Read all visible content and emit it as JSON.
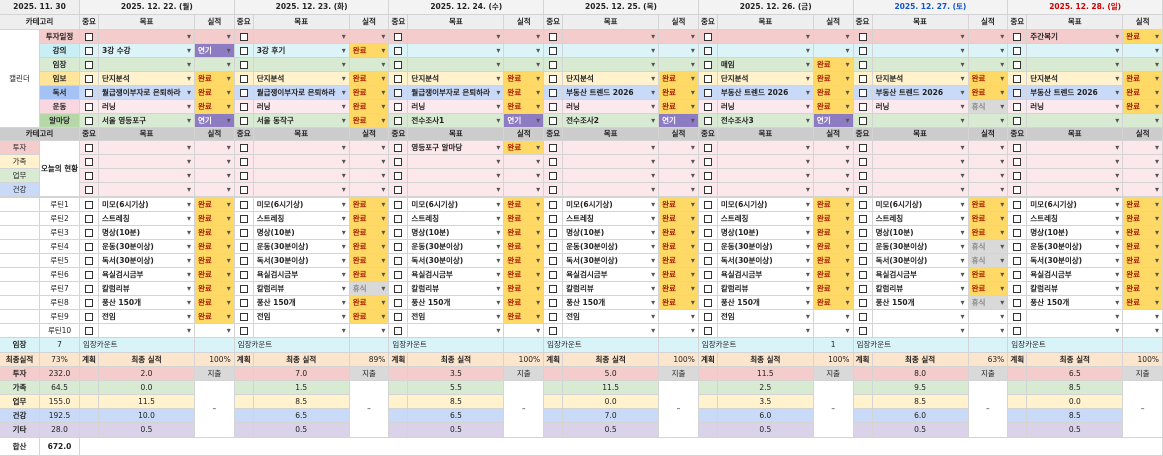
{
  "header": {
    "date": "2025. 11. 30",
    "category": "카테고리",
    "importance": "중요",
    "goal": "목표",
    "result": "실적"
  },
  "days": [
    "2025. 12. 22. (월)",
    "2025. 12. 23. (화)",
    "2025. 12. 24. (수)",
    "2025. 12. 25. (목)",
    "2025. 12. 26. (금)",
    "2025. 12. 27. (토)",
    "2025. 12. 28. (일)"
  ],
  "calendar": {
    "title": "캘린더",
    "rows": [
      {
        "label": "투자일정",
        "cells": [
          {},
          {},
          {},
          {},
          {},
          {},
          {
            "goal": "주간복기",
            "result": "완료"
          }
        ]
      },
      {
        "label": "강의",
        "cells": [
          {
            "goal": "3강 수강",
            "result": "연기"
          },
          {
            "goal": "3강 후기",
            "result": "완료"
          },
          {},
          {},
          {},
          {},
          {}
        ]
      },
      {
        "label": "임장",
        "cells": [
          {},
          {},
          {},
          {},
          {
            "goal": "매임",
            "result": "완료"
          },
          {},
          {}
        ]
      },
      {
        "label": "임보",
        "cells": [
          {
            "goal": "단지분석",
            "result": "완료"
          },
          {
            "goal": "단지분석",
            "result": "완료"
          },
          {
            "goal": "단지분석",
            "result": "완료"
          },
          {
            "goal": "단지분석",
            "result": "완료"
          },
          {
            "goal": "단지분석",
            "result": "완료"
          },
          {
            "goal": "단지분석",
            "result": "완료"
          },
          {
            "goal": "단지분석",
            "result": "완료"
          }
        ]
      },
      {
        "label": "독서",
        "cells": [
          {
            "goal": "월급쟁이부자로 은퇴하라",
            "result": "완료"
          },
          {
            "goal": "월급쟁이부자로 은퇴하라",
            "result": "완료"
          },
          {
            "goal": "월급쟁이부자로 은퇴하라",
            "result": "완료"
          },
          {
            "goal": "부동산 트렌드 2026",
            "result": "완료"
          },
          {
            "goal": "부동산 트렌드 2026",
            "result": "완료"
          },
          {
            "goal": "부동산 트렌드 2026",
            "result": "완료"
          },
          {
            "goal": "부동산 트렌드 2026",
            "result": "완료"
          }
        ]
      },
      {
        "label": "운동",
        "cells": [
          {
            "goal": "러닝",
            "result": "완료"
          },
          {
            "goal": "러닝",
            "result": "완료"
          },
          {
            "goal": "러닝",
            "result": "완료"
          },
          {
            "goal": "러닝",
            "result": "완료"
          },
          {
            "goal": "러닝",
            "result": "완료"
          },
          {
            "goal": "러닝",
            "result": "휴식"
          },
          {
            "goal": "러닝",
            "result": "완료"
          }
        ]
      },
      {
        "label": "알마당",
        "cells": [
          {
            "goal": "서울 영등포구",
            "result": "연기"
          },
          {
            "goal": "서울 동작구",
            "result": "완료"
          },
          {
            "goal": "전수조사1",
            "result": "연기"
          },
          {
            "goal": "전수조사2",
            "result": "연기"
          },
          {
            "goal": "전수조사3",
            "result": "연기"
          },
          {},
          {}
        ]
      }
    ]
  },
  "today": {
    "category": "카테고리",
    "title": "오늘의 현황",
    "rows": [
      {
        "label": "투자",
        "cells": [
          {},
          {},
          {
            "goal": "영등포구 알마당",
            "result": "완료"
          },
          {},
          {},
          {},
          {}
        ]
      },
      {
        "label": "가족",
        "cells": [
          {},
          {},
          {},
          {},
          {},
          {},
          {}
        ]
      },
      {
        "label": "업무",
        "cells": [
          {},
          {},
          {},
          {},
          {},
          {},
          {}
        ]
      },
      {
        "label": "건강",
        "cells": [
          {},
          {},
          {},
          {},
          {},
          {},
          {}
        ]
      }
    ]
  },
  "routines": [
    {
      "label": "루틴1",
      "cells": [
        {
          "goal": "미모(6시기상)",
          "result": "완료"
        },
        {
          "goal": "미모(6시기상)",
          "result": "완료"
        },
        {
          "goal": "미모(6시기상)",
          "result": "완료"
        },
        {
          "goal": "미모(6시기상)",
          "result": "완료"
        },
        {
          "goal": "미모(6시기상)",
          "result": "완료"
        },
        {
          "goal": "미모(6시기상)",
          "result": "완료"
        },
        {
          "goal": "미모(6시기상)",
          "result": "완료"
        }
      ]
    },
    {
      "label": "루틴2",
      "cells": [
        {
          "goal": "스트레칭",
          "result": "완료"
        },
        {
          "goal": "스트레칭",
          "result": "완료"
        },
        {
          "goal": "스트레칭",
          "result": "완료"
        },
        {
          "goal": "스트레칭",
          "result": "완료"
        },
        {
          "goal": "스트레칭",
          "result": "완료"
        },
        {
          "goal": "스트레칭",
          "result": "완료"
        },
        {
          "goal": "스트레칭",
          "result": "완료"
        }
      ]
    },
    {
      "label": "루틴3",
      "cells": [
        {
          "goal": "명상(10분)",
          "result": "완료"
        },
        {
          "goal": "명상(10분)",
          "result": "완료"
        },
        {
          "goal": "명상(10분)",
          "result": "완료"
        },
        {
          "goal": "명상(10분)",
          "result": "완료"
        },
        {
          "goal": "명상(10분)",
          "result": "완료"
        },
        {
          "goal": "명상(10분)",
          "result": "완료"
        },
        {
          "goal": "명상(10분)",
          "result": "완료"
        }
      ]
    },
    {
      "label": "루틴4",
      "cells": [
        {
          "goal": "운동(30분이상)",
          "result": "완료"
        },
        {
          "goal": "운동(30분이상)",
          "result": "완료"
        },
        {
          "goal": "운동(30분이상)",
          "result": "완료"
        },
        {
          "goal": "운동(30분이상)",
          "result": "완료"
        },
        {
          "goal": "운동(30분이상)",
          "result": "완료"
        },
        {
          "goal": "운동(30분이상)",
          "result": "휴식"
        },
        {
          "goal": "운동(30분이상)",
          "result": "완료"
        }
      ]
    },
    {
      "label": "루틴5",
      "cells": [
        {
          "goal": "독서(30분이상)",
          "result": "완료"
        },
        {
          "goal": "독서(30분이상)",
          "result": "완료"
        },
        {
          "goal": "독서(30분이상)",
          "result": "완료"
        },
        {
          "goal": "독서(30분이상)",
          "result": "완료"
        },
        {
          "goal": "독서(30분이상)",
          "result": "완료"
        },
        {
          "goal": "독서(30분이상)",
          "result": "휴식"
        },
        {
          "goal": "독서(30분이상)",
          "result": "완료"
        }
      ]
    },
    {
      "label": "루틴6",
      "cells": [
        {
          "goal": "욕실검시금부",
          "result": "완료"
        },
        {
          "goal": "욕실검시금부",
          "result": "완료"
        },
        {
          "goal": "욕실검시금부",
          "result": "완료"
        },
        {
          "goal": "욕실검시금부",
          "result": "완료"
        },
        {
          "goal": "욕실검시금부",
          "result": "완료"
        },
        {
          "goal": "욕실검시금부",
          "result": "완료"
        },
        {
          "goal": "욕실검시금부",
          "result": "완료"
        }
      ]
    },
    {
      "label": "루틴7",
      "cells": [
        {
          "goal": "칼럼리뷰",
          "result": "완료"
        },
        {
          "goal": "칼럼리뷰",
          "result": "휴식"
        },
        {
          "goal": "칼럼리뷰",
          "result": "완료"
        },
        {
          "goal": "칼럼리뷰",
          "result": "완료"
        },
        {
          "goal": "칼럼리뷰",
          "result": "완료"
        },
        {
          "goal": "칼럼리뷰",
          "result": "완료"
        },
        {
          "goal": "칼럼리뷰",
          "result": "완료"
        }
      ]
    },
    {
      "label": "루틴8",
      "cells": [
        {
          "goal": "풍산 150개",
          "result": "완료"
        },
        {
          "goal": "풍산 150개",
          "result": "완료"
        },
        {
          "goal": "풍산 150개",
          "result": "완료"
        },
        {
          "goal": "풍산 150개",
          "result": "완료"
        },
        {
          "goal": "풍산 150개",
          "result": "완료"
        },
        {
          "goal": "풍산 150개",
          "result": "휴식"
        },
        {
          "goal": "풍산 150개",
          "result": "완료"
        }
      ]
    },
    {
      "label": "루틴9",
      "cells": [
        {
          "goal": "전임",
          "result": "완료"
        },
        {
          "goal": "전임",
          "result": "완료"
        },
        {
          "goal": "전임",
          "result": "완료"
        },
        {
          "goal": "전임"
        },
        {
          "goal": "전임"
        },
        {},
        {}
      ]
    },
    {
      "label": "루틴10",
      "cells": [
        {},
        {},
        {},
        {},
        {},
        {},
        {}
      ]
    }
  ],
  "visits": {
    "label": "임장",
    "total": "7",
    "cells": [
      {
        "goal": "임장카운트"
      },
      {
        "goal": "임장카운트"
      },
      {
        "goal": "임장카운트"
      },
      {
        "goal": "임장카운트"
      },
      {
        "goal": "임장카운트",
        "result": "1"
      },
      {
        "goal": "임장카운트"
      },
      {
        "goal": "임장카운트"
      }
    ]
  },
  "summary": {
    "label": "최종실적",
    "total": "73%",
    "plan": "계획",
    "result_label": "최종 실적",
    "rates": [
      "100%",
      "89%",
      "100%",
      "100%",
      "100%",
      "63%",
      "100%"
    ],
    "placeholder": "–"
  },
  "categories": [
    {
      "label": "투자",
      "total": "232.0",
      "values": [
        "2.0",
        "7.0",
        "3.5",
        "5.0",
        "11.5",
        "8.0",
        "6.5"
      ],
      "note": "지출"
    },
    {
      "label": "가족",
      "total": "64.5",
      "values": [
        "0.0",
        "1.5",
        "5.5",
        "11.5",
        "2.5",
        "9.5",
        "8.5"
      ]
    },
    {
      "label": "업무",
      "total": "155.0",
      "values": [
        "11.5",
        "8.5",
        "8.5",
        "0.0",
        "3.5",
        "8.5",
        "0.0"
      ]
    },
    {
      "label": "건강",
      "total": "192.5",
      "values": [
        "10.0",
        "6.5",
        "6.5",
        "7.0",
        "6.0",
        "6.0",
        "8.5"
      ]
    },
    {
      "label": "기타",
      "total": "28.0",
      "values": [
        "0.5",
        "0.5",
        "0.5",
        "0.5",
        "0.5",
        "0.5",
        "0.5"
      ]
    }
  ],
  "sum": {
    "label": "합산",
    "total": "672.0"
  }
}
